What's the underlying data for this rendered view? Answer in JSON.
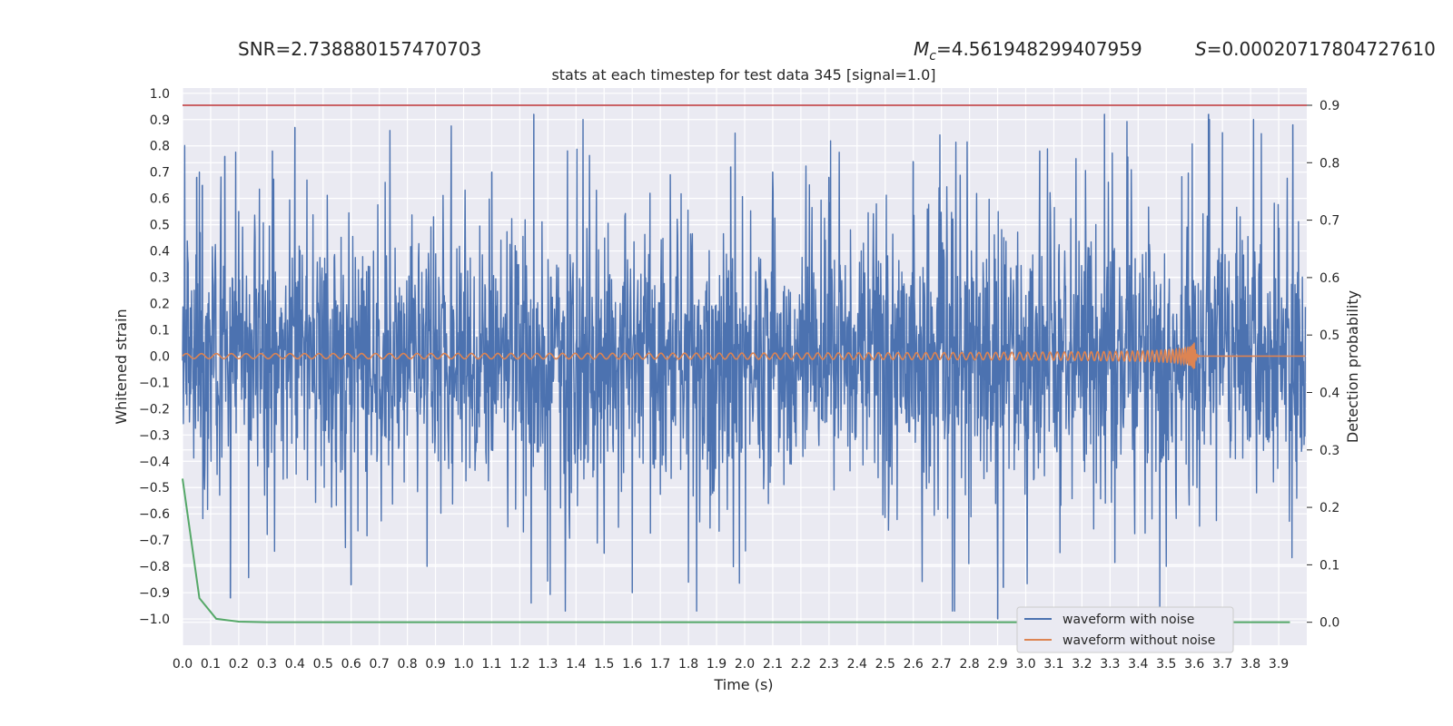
{
  "header": {
    "snr_text": "SNR=2.738880157470703",
    "mc_symbol": "M",
    "mc_subscript": "c",
    "mc_value": "=4.561948299407959",
    "s_symbol": "S",
    "s_value": "=0.00020717804727610"
  },
  "chart_data": {
    "type": "line",
    "title": "stats at each timestep for test data 345 [signal=1.0]",
    "xlabel": "Time (s)",
    "ylabel_left": "Whitened strain",
    "ylabel_right": "Detection probability",
    "xlim": [
      0.0,
      4.0
    ],
    "ylim_left": [
      -1.1,
      1.02
    ],
    "ylim_right": [
      -0.04,
      0.93
    ],
    "x_ticks": [
      "0.0",
      "0.1",
      "0.2",
      "0.3",
      "0.4",
      "0.5",
      "0.6",
      "0.7",
      "0.8",
      "0.9",
      "1.0",
      "1.1",
      "1.2",
      "1.3",
      "1.4",
      "1.5",
      "1.6",
      "1.7",
      "1.8",
      "1.9",
      "2.0",
      "2.1",
      "2.2",
      "2.3",
      "2.4",
      "2.5",
      "2.6",
      "2.7",
      "2.8",
      "2.9",
      "3.0",
      "3.1",
      "3.2",
      "3.3",
      "3.4",
      "3.5",
      "3.6",
      "3.7",
      "3.8",
      "3.9"
    ],
    "y_ticks_left": [
      "−1.0",
      "−0.9",
      "−0.8",
      "−0.7",
      "−0.6",
      "−0.5",
      "−0.4",
      "−0.3",
      "−0.2",
      "−0.1",
      "0.0",
      "0.1",
      "0.2",
      "0.3",
      "0.4",
      "0.5",
      "0.6",
      "0.7",
      "0.8",
      "0.9",
      "1.0"
    ],
    "y_ticks_right": [
      "0.0",
      "0.1",
      "0.2",
      "0.3",
      "0.4",
      "0.5",
      "0.6",
      "0.7",
      "0.8",
      "0.9"
    ],
    "grid": true,
    "legend_position": "lower-right",
    "series": [
      {
        "name": "waveform with noise",
        "axis": "left",
        "color": "#4c72b0",
        "description_peaks": {
          "x": [
            0.05,
            0.06,
            0.07,
            0.15,
            0.17,
            0.2,
            0.32,
            0.4,
            0.6,
            0.87,
            1.1,
            1.25,
            1.5,
            1.6,
            1.8,
            1.95,
            2.1,
            2.3,
            2.6,
            2.9,
            2.92,
            3.05,
            3.28,
            3.5,
            3.65,
            3.7,
            3.95
          ],
          "y": [
            0.68,
            0.7,
            0.65,
            0.76,
            -0.92,
            0.55,
            0.78,
            0.87,
            -0.87,
            -0.8,
            0.7,
            0.92,
            -0.75,
            -0.9,
            -0.86,
            0.72,
            0.7,
            0.68,
            0.74,
            -1.0,
            -0.88,
            0.78,
            0.92,
            -0.8,
            0.92,
            0.85,
            0.88
          ]
        }
      },
      {
        "name": "waveform without noise",
        "axis": "left",
        "color": "#dd8452",
        "chirp_end": 3.6,
        "chirp_peak_amplitude": 0.07
      },
      {
        "name": "",
        "axis": "right",
        "color": "#55a868",
        "x": [
          0.0,
          0.06,
          0.12,
          0.2,
          0.3,
          3.94
        ],
        "y": [
          0.25,
          0.042,
          0.006,
          0.001,
          0.0,
          0.0
        ]
      },
      {
        "name": "",
        "axis": "right",
        "color": "#c44e52",
        "type": "hline",
        "y": 0.9
      }
    ]
  }
}
